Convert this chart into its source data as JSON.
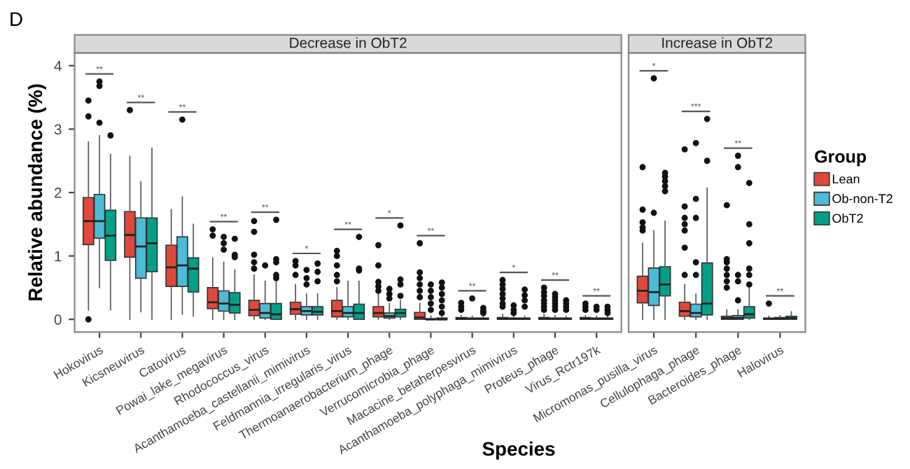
{
  "chart_data": [
    {
      "type": "box",
      "title": "Decrease in ObT2",
      "xlabel": "Species",
      "ylabel": "Relative abundance (%)",
      "ylim": [
        -0.2,
        4.2
      ],
      "yticks": [
        0,
        1,
        2,
        3,
        4
      ],
      "grid": false,
      "legend": "right",
      "legend_title": "Group",
      "categories": [
        "Hokovirus",
        "Kicsneuvirus",
        "Catovirus",
        "Powai_lake_megavirus",
        "Rhodococcus_virus",
        "Acanthamoeba_castellanii_mimivirus",
        "Feldmannia_irregularis_virus",
        "Thermoanaerobacterium_phage",
        "Verrucomicrobia_phage",
        "Macacine_betaherpesvirus",
        "Acanthamoeba_polyphaga_mimivirus",
        "Proteus_phage",
        "Virus_Rctr197k"
      ],
      "annotations": [
        "D",
        "**",
        "**",
        "**",
        "**",
        "**",
        "*",
        "**",
        "*",
        "**",
        "**",
        "*",
        "**",
        "**"
      ],
      "series": [
        {
          "name": "Lean",
          "color": "#e0483c",
          "boxes": [
            {
              "low": 0.15,
              "q1": 1.18,
              "median": 1.55,
              "q3": 1.92,
              "high": 2.8,
              "outliers": [
                3.45,
                3.2,
                0.0
              ]
            },
            {
              "low": 0.0,
              "q1": 0.98,
              "median": 1.33,
              "q3": 1.7,
              "high": 2.57,
              "outliers": [
                3.3
              ]
            },
            {
              "low": 0.0,
              "q1": 0.52,
              "median": 0.82,
              "q3": 1.17,
              "high": 1.73
            },
            {
              "low": 0.0,
              "q1": 0.17,
              "median": 0.27,
              "q3": 0.5,
              "high": 0.97,
              "outliers": [
                1.42,
                1.32
              ]
            },
            {
              "low": 0.0,
              "q1": 0.06,
              "median": 0.15,
              "q3": 0.3,
              "high": 0.7,
              "outliers": [
                1.55,
                1.38,
                1.02,
                0.9,
                0.8
              ]
            },
            {
              "low": 0.0,
              "q1": 0.08,
              "median": 0.16,
              "q3": 0.27,
              "high": 0.55,
              "outliers": [
                0.92,
                0.85,
                0.7
              ]
            },
            {
              "low": 0.0,
              "q1": 0.04,
              "median": 0.13,
              "q3": 0.3,
              "high": 0.5,
              "outliers": [
                1.08,
                1.0,
                0.85,
                0.7,
                0.6
              ]
            },
            {
              "low": 0.0,
              "q1": 0.04,
              "median": 0.1,
              "q3": 0.2,
              "high": 0.4,
              "outliers": [
                1.17,
                0.85,
                0.59,
                0.52,
                0.45
              ]
            },
            {
              "low": 0.0,
              "q1": 0.0,
              "median": 0.03,
              "q3": 0.11,
              "high": 0.25,
              "outliers": [
                1.2,
                0.74,
                0.65,
                0.55,
                0.45,
                0.35
              ]
            },
            {
              "low": 0.0,
              "q1": 0.0,
              "median": 0.01,
              "q3": 0.03,
              "high": 0.06,
              "outliers": [
                0.26,
                0.2,
                0.15
              ]
            },
            {
              "low": 0.0,
              "q1": 0.0,
              "median": 0.01,
              "q3": 0.03,
              "high": 0.08,
              "outliers": [
                0.62,
                0.55,
                0.48,
                0.4,
                0.33,
                0.25,
                0.2
              ]
            },
            {
              "low": 0.0,
              "q1": 0.0,
              "median": 0.01,
              "q3": 0.03,
              "high": 0.08,
              "outliers": [
                0.5,
                0.43,
                0.37,
                0.3,
                0.25,
                0.2,
                0.15
              ]
            },
            {
              "low": 0.0,
              "q1": 0.0,
              "median": 0.01,
              "q3": 0.03,
              "high": 0.06,
              "outliers": [
                0.25,
                0.2,
                0.15
              ]
            }
          ]
        },
        {
          "name": "Ob-non-T2",
          "color": "#4dbbd5",
          "boxes": [
            {
              "low": 0.5,
              "q1": 1.28,
              "median": 1.55,
              "q3": 1.97,
              "high": 2.9,
              "outliers": [
                3.75,
                3.68,
                3.1
              ]
            },
            {
              "low": 0.12,
              "q1": 0.65,
              "median": 1.15,
              "q3": 1.6,
              "high": 2.17
            },
            {
              "low": 0.08,
              "q1": 0.52,
              "median": 0.85,
              "q3": 1.3,
              "high": 1.93,
              "outliers": [
                3.15
              ]
            },
            {
              "low": 0.0,
              "q1": 0.13,
              "median": 0.25,
              "q3": 0.45,
              "high": 0.9,
              "outliers": [
                1.3,
                1.2,
                1.1
              ]
            },
            {
              "low": 0.0,
              "q1": 0.02,
              "median": 0.1,
              "q3": 0.25,
              "high": 0.6,
              "outliers": [
                0.85
              ]
            },
            {
              "low": 0.0,
              "q1": 0.07,
              "median": 0.13,
              "q3": 0.2,
              "high": 0.4,
              "outliers": [
                0.78,
                0.65,
                0.55
              ]
            },
            {
              "low": 0.0,
              "q1": 0.04,
              "median": 0.1,
              "q3": 0.2,
              "high": 0.6
            },
            {
              "low": 0.0,
              "q1": 0.02,
              "median": 0.05,
              "q3": 0.1,
              "high": 0.25,
              "outliers": [
                0.48,
                0.4,
                0.33
              ]
            },
            {
              "low": 0.0,
              "q1": 0.0,
              "median": 0.0,
              "q3": 0.01,
              "high": 0.05,
              "outliers": [
                0.55,
                0.45,
                0.35,
                0.25,
                0.15
              ]
            },
            {
              "low": 0.0,
              "q1": 0.0,
              "median": 0.01,
              "q3": 0.02,
              "high": 0.05,
              "outliers": [
                0.33
              ]
            },
            {
              "low": 0.0,
              "q1": 0.0,
              "median": 0.01,
              "q3": 0.02,
              "high": 0.05,
              "outliers": [
                0.22,
                0.15,
                0.1
              ]
            },
            {
              "low": 0.0,
              "q1": 0.0,
              "median": 0.01,
              "q3": 0.02,
              "high": 0.06,
              "outliers": [
                0.4,
                0.35,
                0.3,
                0.25,
                0.2,
                0.15
              ]
            },
            {
              "low": 0.0,
              "q1": 0.0,
              "median": 0.01,
              "q3": 0.02,
              "high": 0.05,
              "outliers": [
                0.2,
                0.15
              ]
            }
          ]
        },
        {
          "name": "ObT2",
          "color": "#00a087",
          "boxes": [
            {
              "low": 0.15,
              "q1": 0.93,
              "median": 1.32,
              "q3": 1.72,
              "high": 2.6,
              "outliers": [
                2.9
              ]
            },
            {
              "low": 0.0,
              "q1": 0.75,
              "median": 1.2,
              "q3": 1.6,
              "high": 2.7
            },
            {
              "low": 0.05,
              "q1": 0.43,
              "median": 0.8,
              "q3": 0.97,
              "high": 1.5
            },
            {
              "low": 0.0,
              "q1": 0.1,
              "median": 0.23,
              "q3": 0.42,
              "high": 0.78,
              "outliers": [
                1.27,
                1.02,
                0.98
              ]
            },
            {
              "low": 0.0,
              "q1": 0.0,
              "median": 0.08,
              "q3": 0.25,
              "high": 0.6,
              "outliers": [
                1.57,
                0.95,
                0.9,
                0.7,
                0.65
              ]
            },
            {
              "low": 0.0,
              "q1": 0.07,
              "median": 0.12,
              "q3": 0.2,
              "high": 0.4,
              "outliers": [
                0.88,
                0.75,
                0.6
              ]
            },
            {
              "low": 0.0,
              "q1": 0.0,
              "median": 0.1,
              "q3": 0.24,
              "high": 0.6,
              "outliers": [
                1.3,
                0.8,
                0.77
              ]
            },
            {
              "low": 0.0,
              "q1": 0.04,
              "median": 0.1,
              "q3": 0.16,
              "high": 0.3,
              "outliers": [
                1.48,
                0.63,
                0.55,
                0.37
              ]
            },
            {
              "low": 0.0,
              "q1": 0.0,
              "median": 0.0,
              "q3": 0.02,
              "high": 0.05,
              "outliers": [
                0.58,
                0.5,
                0.4,
                0.3,
                0.2,
                0.1
              ]
            },
            {
              "low": 0.0,
              "q1": 0.0,
              "median": 0.01,
              "q3": 0.02,
              "high": 0.05,
              "outliers": [
                0.18,
                0.13,
                0.1
              ]
            },
            {
              "low": 0.0,
              "q1": 0.0,
              "median": 0.01,
              "q3": 0.02,
              "high": 0.05,
              "outliers": [
                0.47,
                0.38,
                0.3,
                0.2
              ]
            },
            {
              "low": 0.0,
              "q1": 0.0,
              "median": 0.01,
              "q3": 0.02,
              "high": 0.05,
              "outliers": [
                0.3,
                0.25,
                0.2,
                0.15
              ]
            },
            {
              "low": 0.0,
              "q1": 0.0,
              "median": 0.01,
              "q3": 0.02,
              "high": 0.05,
              "outliers": [
                0.2,
                0.15,
                0.1
              ]
            }
          ]
        }
      ]
    },
    {
      "type": "box",
      "title": "Increase in ObT2",
      "ylim": [
        -0.2,
        4.2
      ],
      "yticks": [
        0,
        1,
        2,
        3,
        4
      ],
      "tick_labels": "x",
      "grid": false,
      "categories": [
        "Micromonas_pusilla_virus",
        "Cellulophaga_phage",
        "Bacteroides_phage",
        "Halovirus"
      ],
      "annotations": [
        "*",
        "***",
        "**",
        "**"
      ],
      "series": [
        {
          "color": "#e0483c",
          "boxes": [
            {
              "low": 0.0,
              "q1": 0.26,
              "median": 0.45,
              "q3": 0.68,
              "high": 1.2,
              "outliers": [
                2.4,
                1.73,
                1.53,
                1.45,
                1.4
              ]
            },
            {
              "low": 0.0,
              "q1": 0.05,
              "median": 0.13,
              "q3": 0.27,
              "high": 0.55,
              "outliers": [
                2.68,
                1.78,
                1.6,
                1.5,
                1.4,
                1.13,
                0.7
              ]
            },
            {
              "low": 0.0,
              "q1": 0.0,
              "median": 0.02,
              "q3": 0.05,
              "high": 0.15,
              "outliers": [
                1.8,
                0.95,
                0.9,
                0.8,
                0.7,
                0.6,
                0.5
              ]
            },
            {
              "low": 0.0,
              "q1": 0.0,
              "median": 0.01,
              "q3": 0.02,
              "high": 0.05,
              "outliers": [
                0.25
              ]
            }
          ]
        },
        {
          "color": "#4dbbd5",
          "boxes": [
            {
              "low": 0.0,
              "q1": 0.22,
              "median": 0.43,
              "q3": 0.81,
              "high": 1.4,
              "outliers": [
                3.8,
                1.68
              ]
            },
            {
              "low": 0.0,
              "q1": 0.04,
              "median": 0.1,
              "q3": 0.24,
              "high": 0.4,
              "outliers": [
                2.78,
                1.9,
                1.6,
                0.9,
                0.7
              ]
            },
            {
              "low": 0.0,
              "q1": 0.0,
              "median": 0.02,
              "q3": 0.06,
              "high": 0.15,
              "outliers": [
                2.58,
                2.4,
                0.7,
                0.6,
                0.3
              ]
            },
            {
              "low": 0.0,
              "q1": 0.0,
              "median": 0.01,
              "q3": 0.03,
              "high": 0.06
            }
          ]
        },
        {
          "color": "#00a087",
          "boxes": [
            {
              "low": 0.0,
              "q1": 0.37,
              "median": 0.55,
              "q3": 0.83,
              "high": 1.55,
              "outliers": [
                2.31,
                2.25,
                2.18,
                2.1,
                2.02
              ]
            },
            {
              "low": 0.0,
              "q1": 0.07,
              "median": 0.25,
              "q3": 0.89,
              "high": 2.07,
              "outliers": [
                3.16,
                2.5
              ]
            },
            {
              "low": 0.0,
              "q1": 0.02,
              "median": 0.08,
              "q3": 0.2,
              "high": 0.5,
              "outliers": [
                2.15,
                1.5,
                1.2,
                0.8,
                0.7,
                0.55
              ]
            },
            {
              "low": 0.0,
              "q1": 0.0,
              "median": 0.02,
              "q3": 0.05,
              "high": 0.12
            }
          ]
        }
      ]
    }
  ]
}
